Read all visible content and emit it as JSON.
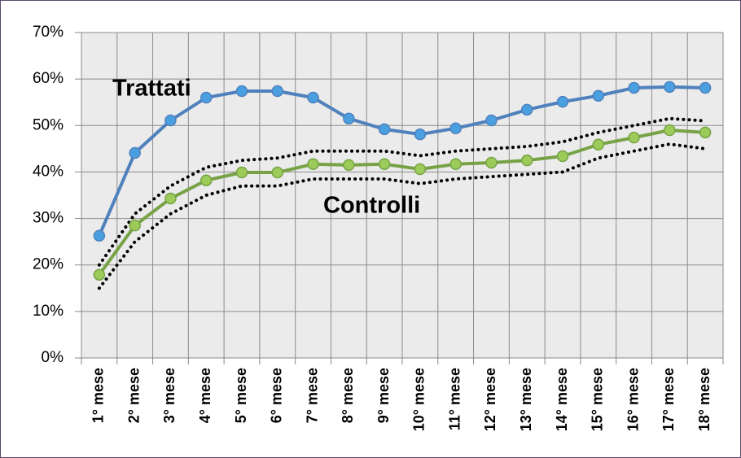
{
  "chart_data": {
    "type": "line",
    "categories": [
      "1° mese",
      "2° mese",
      "3° mese",
      "4° mese",
      "5° mese",
      "6° mese",
      "7° mese",
      "8° mese",
      "9° mese",
      "10° mese",
      "11° mese",
      "12° mese",
      "13° mese",
      "14° mese",
      "15° mese",
      "16° mese",
      "17° mese",
      "18° mese"
    ],
    "series": [
      {
        "name": "Trattati",
        "color": "#4f81bd",
        "marker_color": "#4a9fe0",
        "values": [
          26.3,
          44.1,
          51.1,
          56,
          57.4,
          57.4,
          56,
          51.5,
          49.2,
          48.1,
          49.4,
          51.1,
          53.4,
          55.1,
          56.4,
          58.1,
          58.3,
          58.1
        ]
      },
      {
        "name": "Controlli",
        "color": "#77a346",
        "marker_color": "#9ccb5a",
        "values": [
          17.9,
          28.5,
          34.3,
          38.2,
          39.9,
          39.9,
          41.7,
          41.5,
          41.7,
          40.6,
          41.7,
          42,
          42.5,
          43.4,
          45.9,
          47.4,
          49,
          48.5
        ]
      },
      {
        "color": "#000000",
        "dotted": true,
        "values": [
          20,
          31,
          37,
          41,
          42.5,
          43,
          44.5,
          44.5,
          44.5,
          43.5,
          44.5,
          45,
          45.5,
          46.5,
          48.5,
          50,
          51.5,
          51
        ]
      },
      {
        "color": "#000000",
        "dotted": true,
        "values": [
          15,
          25,
          31,
          35,
          37,
          37,
          38.5,
          38.5,
          38.5,
          37.5,
          38.5,
          39,
          39.5,
          40,
          43,
          44.5,
          46,
          45
        ]
      }
    ],
    "ylim": [
      0,
      70
    ],
    "yticks": [
      {
        "value": 0,
        "label": "0%"
      },
      {
        "value": 10,
        "label": "10%"
      },
      {
        "value": 20,
        "label": "20%"
      },
      {
        "value": 30,
        "label": "30%"
      },
      {
        "value": 40,
        "label": "40%"
      },
      {
        "value": 50,
        "label": "50%"
      },
      {
        "value": 60,
        "label": "60%"
      },
      {
        "value": 70,
        "label": "70%"
      }
    ],
    "grid": true
  }
}
